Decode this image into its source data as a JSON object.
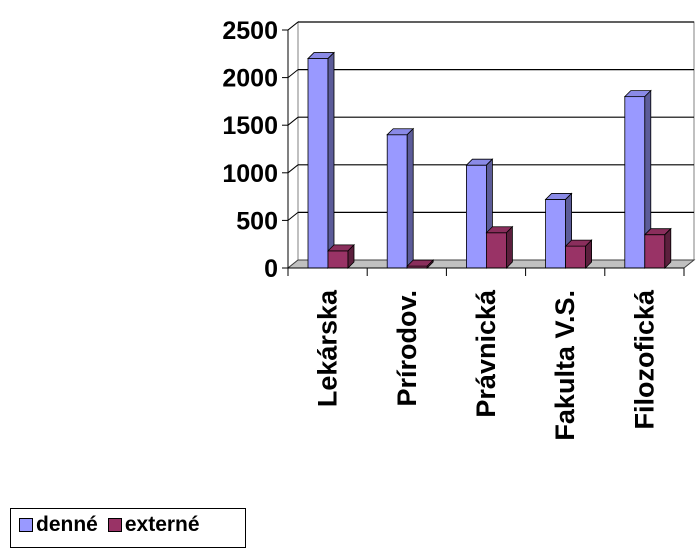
{
  "chart_data": {
    "type": "bar",
    "categories": [
      "Lekárska",
      "Prírodov.",
      "Právnická",
      "Fakulta V.S.",
      "Filozofická"
    ],
    "series": [
      {
        "name": "denné",
        "values": [
          2200,
          1400,
          1080,
          720,
          1800
        ],
        "color": "#9999FF"
      },
      {
        "name": "externé",
        "values": [
          180,
          20,
          370,
          230,
          350
        ],
        "color": "#993366"
      }
    ],
    "yticks": [
      "0",
      "500",
      "1000",
      "1500",
      "2000",
      "2500"
    ],
    "ylim": [
      0,
      2500
    ],
    "grid": true,
    "legend_position": "bottom-left",
    "three_d": true
  }
}
